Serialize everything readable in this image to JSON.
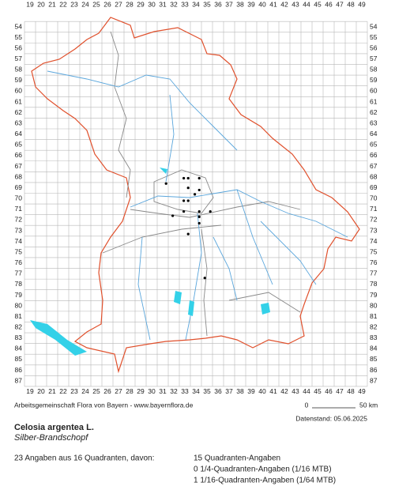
{
  "map": {
    "grid": {
      "columns": [
        19,
        20,
        21,
        22,
        23,
        24,
        25,
        26,
        27,
        28,
        29,
        30,
        31,
        32,
        33,
        34,
        35,
        36,
        37,
        38,
        39,
        40,
        41,
        42,
        43,
        44,
        45,
        46,
        47,
        48,
        49
      ],
      "rows": [
        54,
        55,
        56,
        57,
        58,
        59,
        60,
        61,
        62,
        63,
        64,
        65,
        66,
        67,
        68,
        69,
        70,
        71,
        72,
        73,
        74,
        75,
        76,
        77,
        78,
        79,
        80,
        81,
        82,
        83,
        84,
        85,
        86,
        87
      ]
    },
    "points": [
      [
        31.3,
        68.6
      ],
      [
        32.9,
        68.1
      ],
      [
        33.3,
        68.1
      ],
      [
        34.3,
        68.1
      ],
      [
        33.3,
        69.0
      ],
      [
        34.3,
        69.2
      ],
      [
        33.9,
        69.6
      ],
      [
        32.9,
        70.2
      ],
      [
        33.3,
        70.2
      ],
      [
        32.9,
        71.2
      ],
      [
        34.3,
        71.2
      ],
      [
        31.9,
        71.6
      ],
      [
        34.3,
        71.7
      ],
      [
        35.3,
        71.2
      ],
      [
        34.3,
        72.3
      ],
      [
        33.3,
        73.3
      ],
      [
        34.8,
        77.4
      ]
    ],
    "credit": "Arbeitsgemeinschaft Flora von Bayern - www.bayernflora.de",
    "scale_start": "0",
    "scale_end": "50 km",
    "date": "Datenstand: 05.06.2025",
    "title": "Celosia argentea L.",
    "subtitle": "Silber-Brandschopf",
    "summary": "23 Angaben aus 16 Quadranten, davon:",
    "details": [
      "15 Quadranten-Angaben",
      "0 1/4-Quadranten-Angaben (1/16 MTB)",
      "1 1/16-Quadranten-Angaben (1/64 MTB)"
    ]
  }
}
